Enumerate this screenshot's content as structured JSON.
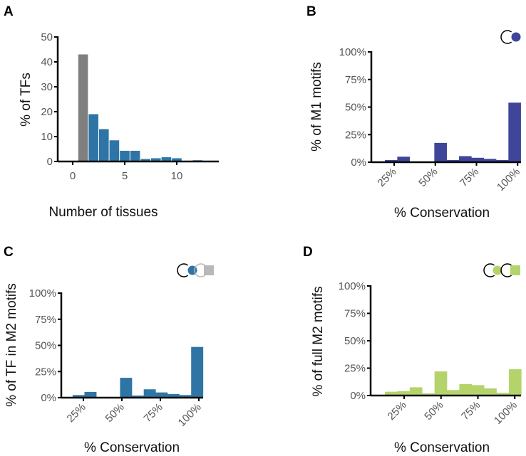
{
  "colors": {
    "gray": "#7f7f7f",
    "blue": "#2e75a6",
    "purple": "#3f4598",
    "green": "#b5d36b",
    "lightgray": "#b8b8b8"
  },
  "chart_data": [
    {
      "panel": "A",
      "type": "bar",
      "xlabel": "Number of tissues",
      "ylabel": "% of TFs",
      "ylim": [
        0,
        50
      ],
      "yticks": [
        0,
        10,
        20,
        30,
        40,
        50
      ],
      "xticks": [
        0,
        5,
        10
      ],
      "categories": [
        1,
        2,
        3,
        4,
        5,
        6,
        7,
        8,
        9,
        10,
        11,
        12
      ],
      "values": [
        43,
        19,
        13,
        8.5,
        4.3,
        4.3,
        1,
        1.3,
        1.7,
        1.3,
        0,
        0.5
      ],
      "bar_colors": [
        "gray",
        "blue",
        "blue",
        "blue",
        "blue",
        "blue",
        "blue",
        "blue",
        "blue",
        "blue",
        "blue",
        "blue"
      ]
    },
    {
      "panel": "B",
      "type": "bar",
      "xlabel": "% Conservation",
      "ylabel": "% of M1 motifs",
      "ylim": [
        0,
        100
      ],
      "yticks": [
        "0%",
        "25%",
        "50%",
        "75%",
        "100%"
      ],
      "xticks": [
        "25%",
        "50%",
        "75%",
        "100%"
      ],
      "bin_start": 19.4,
      "bin_width": 7.5,
      "values": [
        2,
        5,
        0,
        0,
        17.5,
        2,
        5.5,
        4,
        3,
        2,
        54
      ],
      "color": "purple",
      "icon": "m1-motif-icon"
    },
    {
      "panel": "C",
      "type": "bar",
      "xlabel": "% Conservation",
      "ylabel": "% of TF in M2 motifs",
      "ylim": [
        0,
        100
      ],
      "yticks": [
        "0%",
        "25%",
        "50%",
        "75%",
        "100%"
      ],
      "xticks": [
        "25%",
        "50%",
        "75%",
        "100%"
      ],
      "bin_start": 18,
      "bin_width": 7.7,
      "values": [
        2.5,
        5.5,
        0,
        0,
        19,
        2,
        8,
        5,
        3.5,
        2.5,
        48.5
      ],
      "color": "blue",
      "icon": "tf-in-m2-motif-icon"
    },
    {
      "panel": "D",
      "type": "bar",
      "xlabel": "% Conservation",
      "ylabel": "% of full M2 motifs",
      "ylim": [
        0,
        100
      ],
      "yticks": [
        "0%",
        "25%",
        "50%",
        "75%",
        "100%"
      ],
      "xticks": [
        "25%",
        "50%",
        "75%",
        "100%"
      ],
      "bin_start": 12,
      "bin_width": 8.4,
      "values": [
        3.5,
        4,
        7.5,
        2,
        22,
        5,
        10.5,
        9.5,
        6.5,
        2.5,
        24
      ],
      "color": "green",
      "icon": "full-m2-motif-icon"
    }
  ]
}
